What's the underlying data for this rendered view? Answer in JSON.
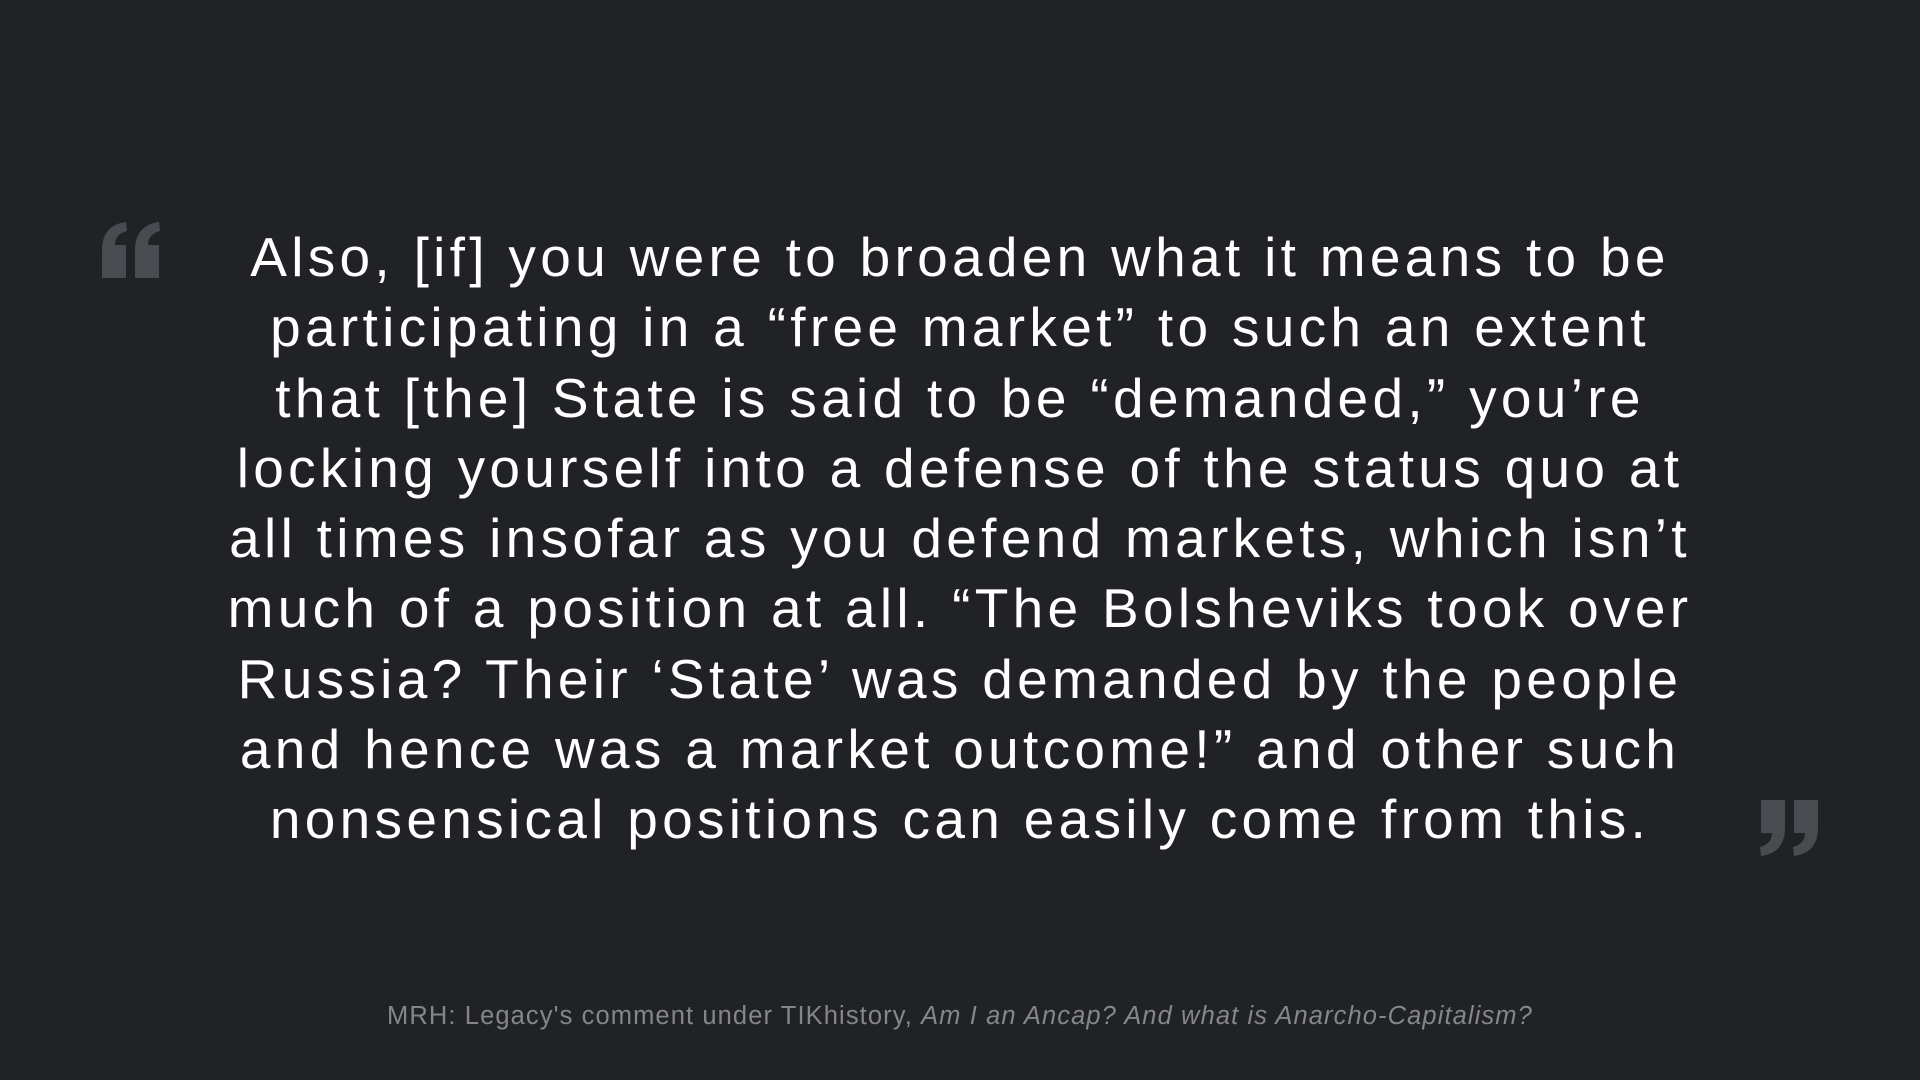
{
  "quote": {
    "text": "Also, [if] you were to broaden what it means to be participating in a “free market” to such an extent that [the] State is said to be “demanded,” you’re locking yourself into a defense of the status quo at all times insofar as you defend markets, which isn’t much of a position at all. “The Bolsheviks took over Russia? Their ‘State’ was demanded by the people and hence was a market outcome!” and other such nonsensical positions can easily come from this.",
    "open_icon": "open-quote-icon",
    "close_icon": "close-quote-icon"
  },
  "attribution": {
    "prefix": "MRH: Legacy's comment under TIKhistory, ",
    "work": "Am I an Ancap? And what is Anarcho-Capitalism?"
  },
  "colors": {
    "background": "#212226",
    "quote_text": "#ffffff",
    "quote_marks": "#4a4b50",
    "attribution": "#85868c"
  }
}
